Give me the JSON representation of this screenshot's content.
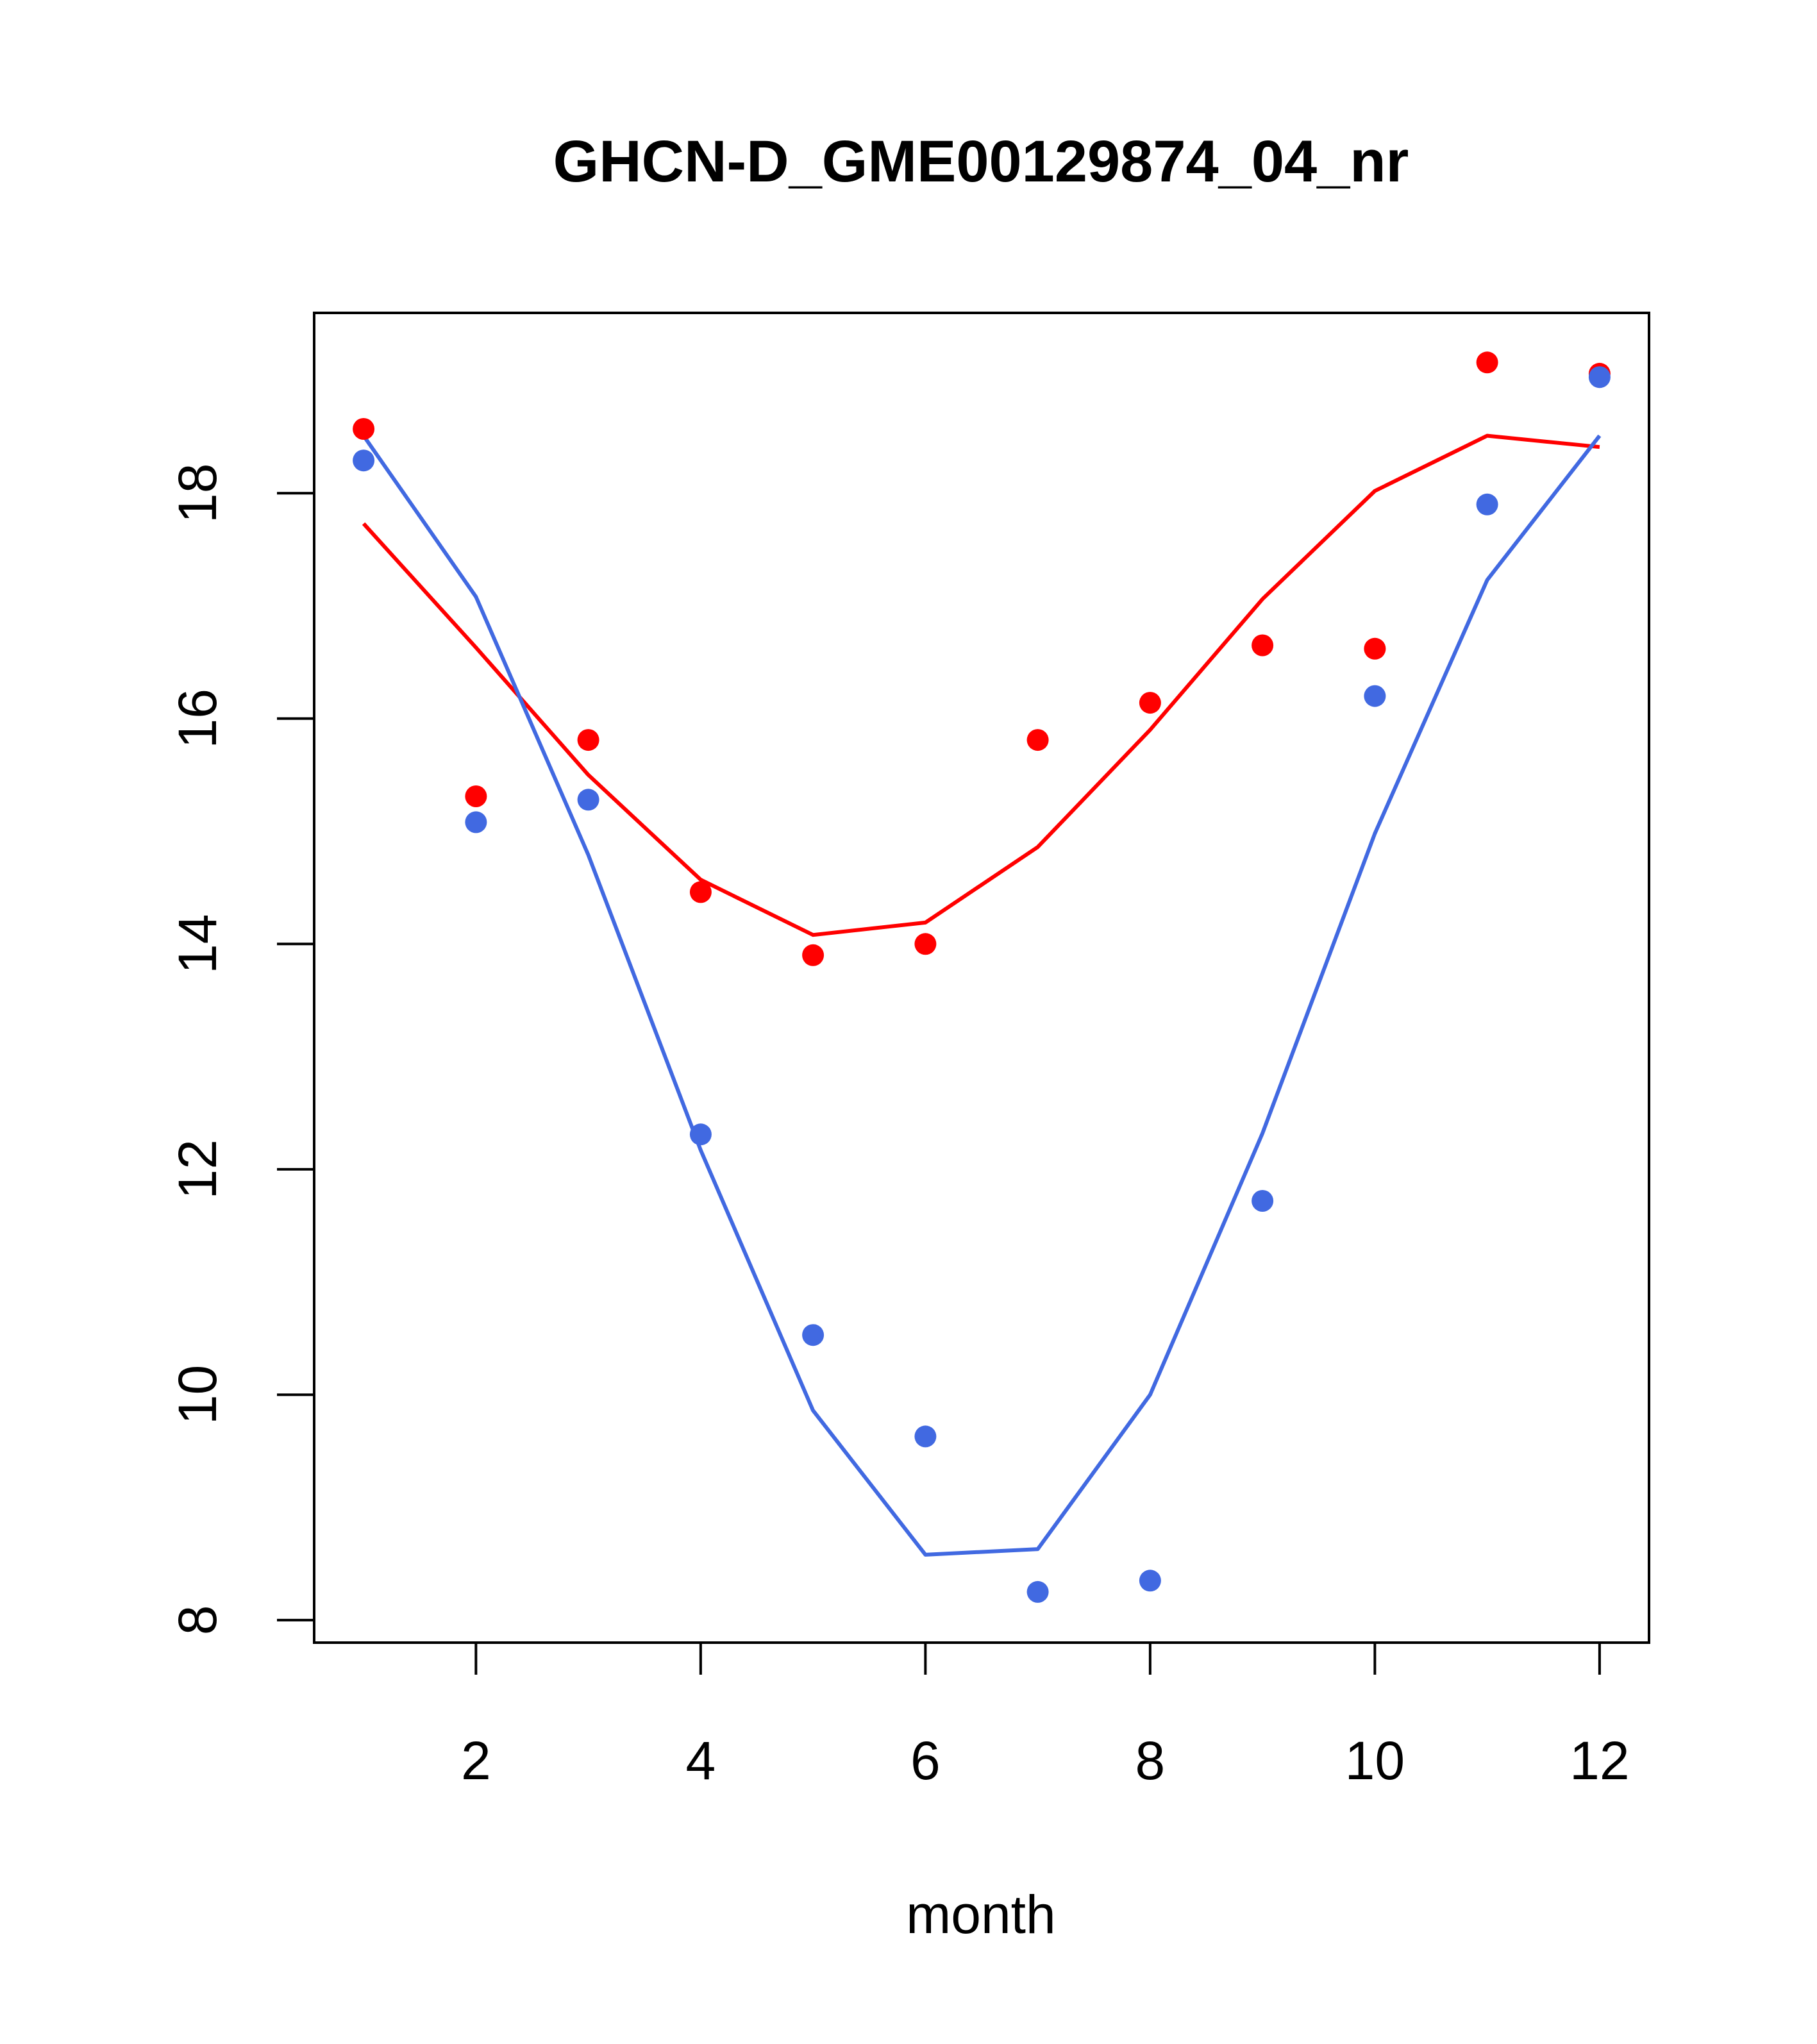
{
  "chart_data": {
    "type": "scatter",
    "title": "GHCN-D_GME00129874_04_nr",
    "xlabel": "month",
    "ylabel": "",
    "xlim": [
      0.56,
      12.44
    ],
    "ylim": [
      7.8,
      19.6
    ],
    "xticks": [
      2,
      4,
      6,
      8,
      10,
      12
    ],
    "yticks": [
      8,
      10,
      12,
      14,
      16,
      18
    ],
    "grid": false,
    "legend": "none",
    "series": [
      {
        "name": "red points",
        "kind": "points",
        "color": "#ff0000",
        "x": [
          1,
          2,
          3,
          4,
          5,
          6,
          7,
          8,
          9,
          10,
          11,
          12
        ],
        "y": [
          18.57,
          15.31,
          15.81,
          14.46,
          13.9,
          14.0,
          15.81,
          16.14,
          16.65,
          16.62,
          19.16,
          19.06
        ]
      },
      {
        "name": "blue points",
        "kind": "points",
        "color": "#4169e1",
        "x": [
          1,
          2,
          3,
          4,
          5,
          6,
          7,
          8,
          9,
          10,
          11,
          12
        ],
        "y": [
          18.29,
          15.08,
          15.28,
          12.31,
          10.53,
          9.63,
          8.25,
          8.35,
          11.72,
          16.2,
          17.9,
          19.03
        ]
      },
      {
        "name": "red line",
        "kind": "line",
        "color": "#ff0000",
        "x": [
          1,
          2,
          3,
          4,
          5,
          6,
          7,
          8,
          9,
          10,
          11,
          12
        ],
        "y": [
          17.73,
          16.63,
          15.5,
          14.57,
          14.08,
          14.19,
          14.86,
          15.9,
          17.06,
          18.02,
          18.51,
          18.41
        ]
      },
      {
        "name": "blue line",
        "kind": "line",
        "color": "#4169e1",
        "x": [
          1,
          2,
          3,
          4,
          5,
          6,
          7,
          8,
          9,
          10,
          11,
          12
        ],
        "y": [
          18.51,
          17.08,
          14.79,
          12.17,
          9.86,
          8.58,
          8.63,
          10.0,
          12.32,
          14.98,
          17.23,
          18.51
        ]
      }
    ]
  }
}
